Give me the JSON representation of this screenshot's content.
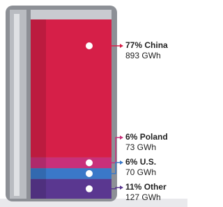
{
  "chart_data": {
    "type": "battery",
    "categories": [
      "China",
      "Poland",
      "U.S.",
      "Other"
    ],
    "values": [
      77,
      6,
      6,
      11
    ],
    "value_labels": [
      "77%",
      "6%",
      "6%",
      "11%"
    ],
    "capacities": [
      893,
      73,
      70,
      127
    ],
    "capacity_labels": [
      "893 GWh",
      "73 GWh",
      "70 GWh",
      "127 GWh"
    ],
    "colors": [
      "#d61f48",
      "#c8307a",
      "#3a78c8",
      "#5a3790"
    ]
  }
}
